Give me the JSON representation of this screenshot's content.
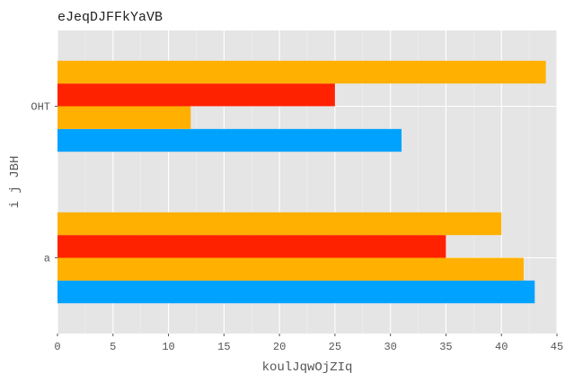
{
  "chart_data": {
    "type": "bar",
    "orientation": "horizontal",
    "title": "eJeqDJFFkYaVB",
    "xlabel": "koulJqwOjZIq",
    "ylabel": "i j JBH",
    "categories": [
      "a",
      "OHT"
    ],
    "series": [
      {
        "color": "#00a2ff",
        "values": [
          43,
          31
        ]
      },
      {
        "color": "#ffb000",
        "values": [
          42,
          12
        ]
      },
      {
        "color": "#ff2200",
        "values": [
          35,
          25
        ]
      },
      {
        "color": "#ffb000",
        "values": [
          40,
          44
        ]
      }
    ],
    "xlim": [
      0,
      45
    ],
    "xticks": [
      0,
      5,
      10,
      15,
      20,
      25,
      30,
      35,
      40,
      45
    ],
    "grid": true,
    "legend": "none",
    "background": "#e5e5e5",
    "grid_color": "#ffffff"
  }
}
